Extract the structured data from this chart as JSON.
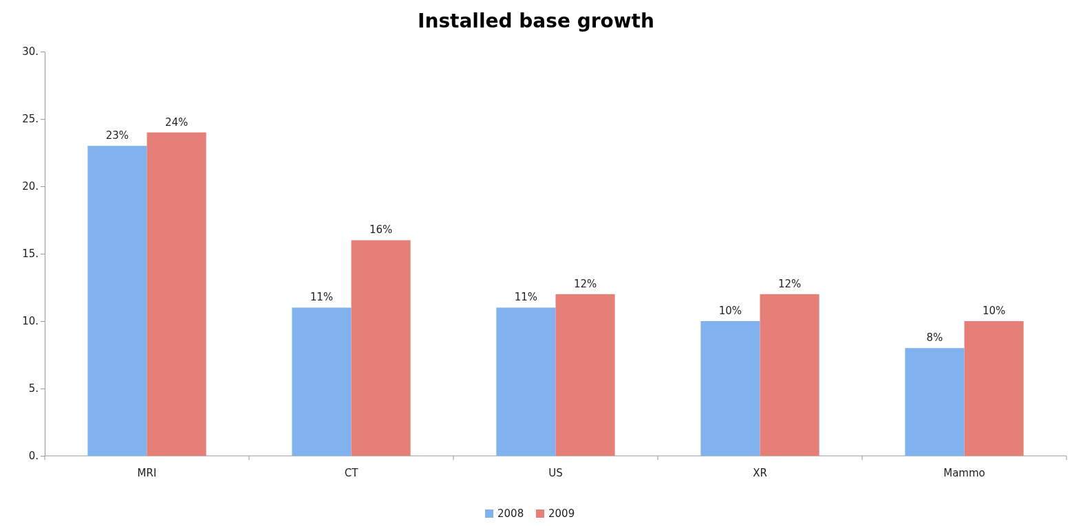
{
  "chart_data": {
    "type": "bar",
    "title": "Installed base growth",
    "categories": [
      "MRI",
      "CT",
      "US",
      "XR",
      "Mammo"
    ],
    "series": [
      {
        "name": "2008",
        "color": "#7fb2ee",
        "values": [
          23,
          11,
          11,
          10,
          8
        ],
        "value_labels": [
          "23%",
          "11%",
          "11%",
          "10%",
          "8%"
        ]
      },
      {
        "name": "2009",
        "color": "#e57f77",
        "values": [
          24,
          16,
          12,
          12,
          10
        ],
        "value_labels": [
          "24%",
          "16%",
          "12%",
          "12%",
          "10%"
        ]
      }
    ],
    "ylim": [
      0,
      30
    ],
    "yticks": [
      {
        "value": 0,
        "label": "0."
      },
      {
        "value": 5,
        "label": "5."
      },
      {
        "value": 10,
        "label": "10."
      },
      {
        "value": 15,
        "label": "15."
      },
      {
        "value": 20,
        "label": "20."
      },
      {
        "value": 25,
        "label": "25."
      },
      {
        "value": 30,
        "label": "30."
      }
    ],
    "grid": false,
    "legend": "bottom"
  }
}
